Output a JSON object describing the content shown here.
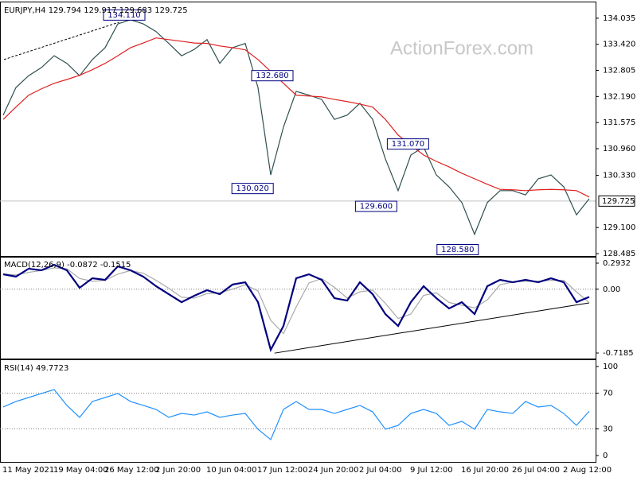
{
  "watermark": "ActionForex.com",
  "chart_data": [
    {
      "type": "line",
      "title": "EURJPY,H4  129.794 129.917 129.683 129.725",
      "ylim": [
        128.43,
        134.37
      ],
      "yticks": [
        134.035,
        {
          "value": 133.42,
          "label": "133.420"
        },
        132.805,
        {
          "value": 132.19,
          "label": "132.190"
        },
        131.575,
        {
          "value": 130.96,
          "label": "130.960"
        },
        {
          "value": 130.33,
          "label": "130.330"
        },
        {
          "value": 129.1,
          "label": "129.100"
        },
        128.485
      ],
      "last_price": 129.725,
      "series": [
        {
          "color": "#2f4f4f",
          "values": [
            131.75,
            132.4,
            132.68,
            132.87,
            133.15,
            132.97,
            132.68,
            133.06,
            133.34,
            133.9,
            134.0,
            133.9,
            133.72,
            133.44,
            133.15,
            133.3,
            133.53,
            132.97,
            133.34,
            133.44,
            132.4,
            130.34,
            131.47,
            132.31,
            132.22,
            132.12,
            131.65,
            131.75,
            132.03,
            131.65,
            130.72,
            129.97,
            130.81,
            131.0,
            130.34,
            130.06,
            129.69,
            128.94,
            129.69,
            129.97,
            129.97,
            129.87,
            130.25,
            130.34,
            130.06,
            129.4,
            129.78
          ]
        },
        {
          "color": "#e02020",
          "values": [
            131.65,
            131.94,
            132.22,
            132.37,
            132.5,
            132.59,
            132.69,
            132.82,
            132.97,
            133.15,
            133.34,
            133.45,
            133.57,
            133.53,
            133.49,
            133.45,
            133.44,
            133.38,
            133.34,
            133.29,
            133.06,
            132.78,
            132.5,
            132.22,
            132.2,
            132.18,
            132.12,
            132.07,
            132.01,
            131.94,
            131.65,
            131.28,
            131.04,
            130.81,
            130.66,
            130.53,
            130.38,
            130.25,
            130.12,
            130.0,
            129.99,
            129.97,
            129.99,
            130.0,
            129.99,
            129.97,
            129.82
          ]
        }
      ],
      "annotations": [
        {
          "x": 9.5,
          "value": 134.11,
          "label": "134.110"
        },
        {
          "x": 19.75,
          "value": 132.68,
          "label": "132.680"
        },
        {
          "x": 21.2,
          "value": 130.02,
          "label": "130.020"
        },
        {
          "x": 33.4,
          "value": 131.07,
          "label": "131.070"
        },
        {
          "x": 30.9,
          "value": 129.6,
          "label": "129.600"
        },
        {
          "x": 37.3,
          "value": 128.58,
          "label": "128.580"
        }
      ],
      "trendline": {
        "x": [
          0.06,
          9.1
        ],
        "values": [
          133.06,
          133.94
        ],
        "style": "dashed",
        "color": "#000000"
      }
    },
    {
      "type": "line",
      "title": "MACD(12,26,9) -0.0872 -0.1515",
      "ylim": [
        -0.772,
        0.347
      ],
      "yticks": [
        0.2932,
        {
          "value": 0,
          "label": "0.00"
        },
        -0.7185
      ],
      "levels": [
        0
      ],
      "series": [
        {
          "color": "#a9a9a9",
          "values": [
            0.17,
            0.16,
            0.19,
            0.21,
            0.24,
            0.23,
            0.12,
            0.09,
            0.1,
            0.17,
            0.21,
            0.18,
            0.1,
            0.01,
            -0.09,
            -0.1,
            -0.05,
            -0.04,
            0.0,
            0.05,
            -0.02,
            -0.35,
            -0.5,
            -0.2,
            0.07,
            0.12,
            0.02,
            -0.1,
            -0.03,
            -0.01,
            -0.16,
            -0.33,
            -0.28,
            -0.07,
            -0.04,
            -0.15,
            -0.18,
            -0.21,
            -0.12,
            0.05,
            0.08,
            0.09,
            0.09,
            0.1,
            0.1,
            -0.03,
            -0.1515
          ]
        },
        {
          "color": "#000080",
          "values": [
            0.168,
            0.141,
            0.231,
            0.213,
            0.275,
            0.213,
            0.016,
            0.123,
            0.105,
            0.257,
            0.213,
            0.141,
            0.034,
            -0.056,
            -0.146,
            -0.074,
            -0.011,
            -0.056,
            0.052,
            0.078,
            -0.146,
            -0.683,
            -0.414,
            0.123,
            0.168,
            0.105,
            -0.101,
            -0.128,
            0.078,
            -0.056,
            -0.28,
            -0.414,
            -0.146,
            0.034,
            -0.101,
            -0.217,
            -0.146,
            -0.28,
            0.034,
            0.105,
            0.078,
            0.105,
            0.078,
            0.123,
            0.078,
            -0.146,
            -0.0872
          ]
        }
      ],
      "trendline": {
        "x": [
          21.3,
          46
        ],
        "values": [
          -0.72,
          -0.154
        ],
        "style": "solid",
        "color": "#000000"
      }
    },
    {
      "type": "line",
      "title": "RSI(14) 49.7723",
      "ylim": [
        -6.25,
        105.4
      ],
      "yticks": [
        100,
        70,
        30,
        0
      ],
      "levels": [
        70,
        30
      ],
      "categories": [
        "11 May 2021",
        null,
        null,
        null,
        "19 May 04:00",
        null,
        null,
        null,
        "26 May 12:00",
        null,
        null,
        null,
        "2 Jun 20:00",
        null,
        null,
        null,
        "10 Jun 04:00",
        null,
        null,
        null,
        "17 Jun 12:00",
        null,
        null,
        null,
        "24 Jun 20:00",
        null,
        null,
        null,
        "2 Jul 04:00",
        null,
        null,
        null,
        "9 Jul 12:00",
        null,
        null,
        null,
        "16 Jul 20:00",
        null,
        null,
        null,
        "26 Jul 04:00",
        null,
        null,
        null,
        "2 Aug 12:00",
        null,
        null
      ],
      "series": [
        {
          "color": "#1e90ff",
          "values": [
            54.5,
            60.7,
            65.2,
            69.7,
            74.1,
            56.3,
            42.9,
            60.7,
            65.2,
            69.7,
            60.7,
            56.3,
            51.8,
            42.9,
            47.3,
            45.5,
            49.1,
            42.9,
            45.5,
            47.3,
            29.5,
            17.9,
            51.8,
            60.7,
            51.8,
            51.8,
            47.3,
            51.8,
            56.3,
            49.1,
            29.5,
            33.9,
            47.3,
            51.8,
            47.3,
            33.9,
            38.4,
            29.5,
            51.8,
            49.1,
            47.3,
            60.7,
            54.5,
            56.3,
            47.3,
            33.9,
            49.77
          ]
        }
      ]
    }
  ]
}
